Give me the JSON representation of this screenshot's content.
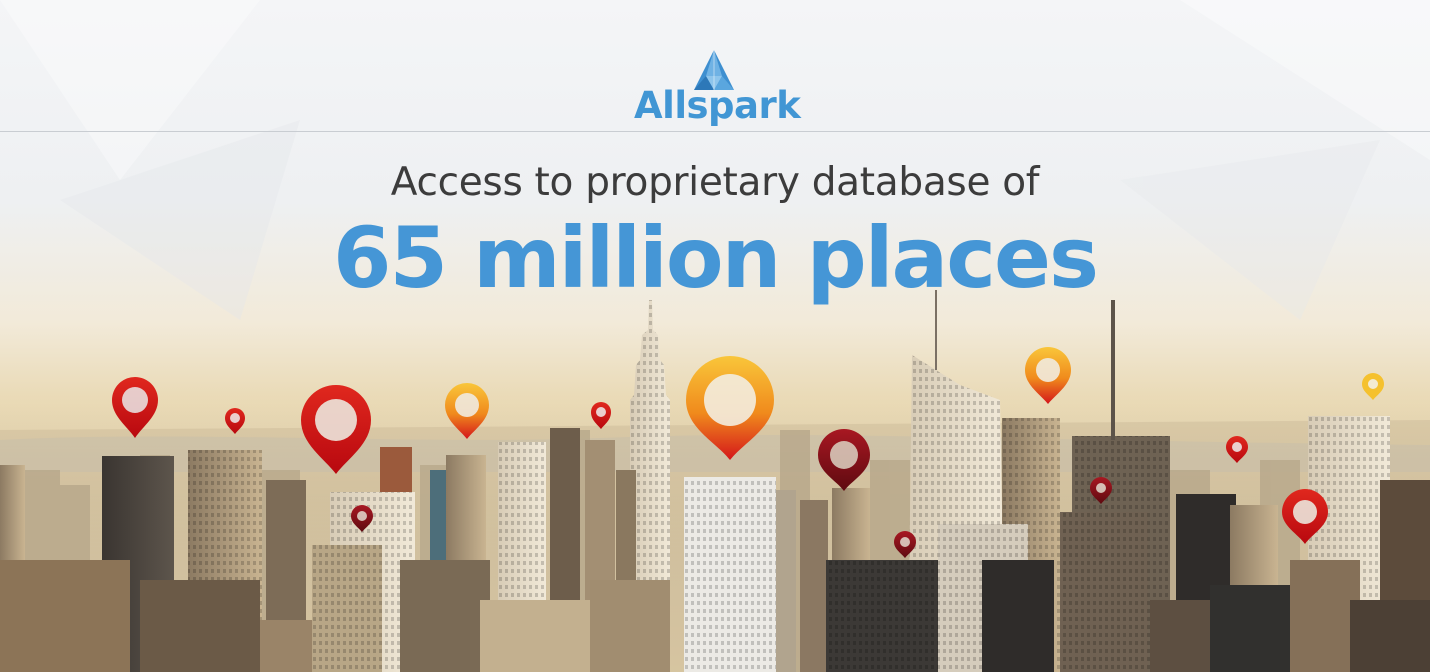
{
  "brand": {
    "name": "Allspark"
  },
  "headline": "Access to proprietary database of",
  "highlight": "65 million places",
  "colors": {
    "brand_blue": "#4596d6",
    "headline_gray": "#3c3c3c",
    "pin_red": "#d7141a",
    "pin_orange": "#f08a1c",
    "pin_yellow": "#f7c531"
  },
  "icons": [
    "allspark-logo-icon",
    "map-pin-icon"
  ]
}
